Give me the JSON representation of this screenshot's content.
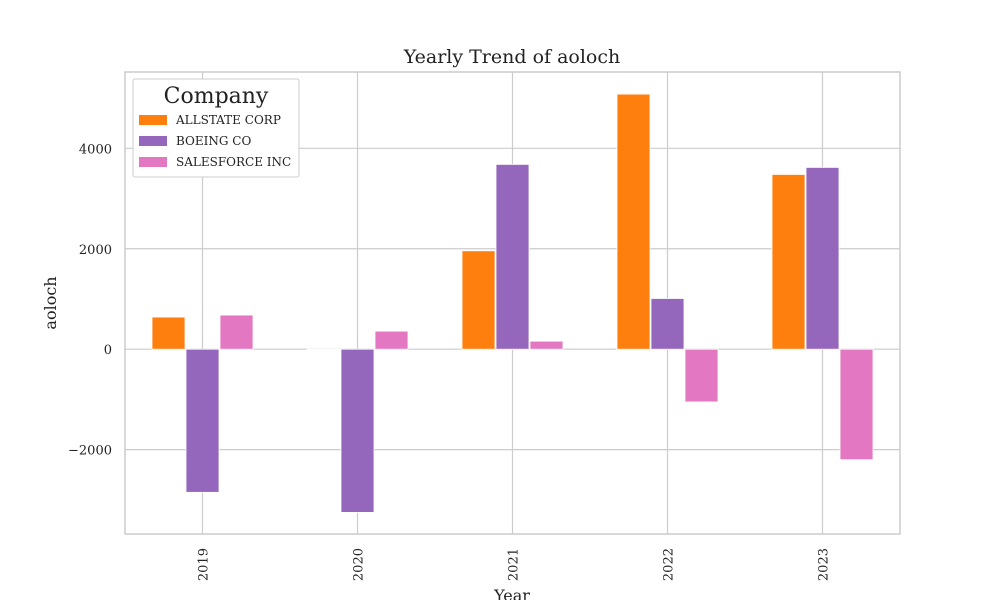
{
  "chart_data": {
    "type": "bar",
    "title": "Yearly Trend of aoloch",
    "xlabel": "Year",
    "ylabel": "aoloch",
    "categories": [
      "2019",
      "2020",
      "2021",
      "2022",
      "2023"
    ],
    "series": [
      {
        "name": "ALLSTATE CORP",
        "color": "#ff7f0e",
        "values": [
          640,
          0,
          1960,
          5080,
          3480
        ]
      },
      {
        "name": "BOEING CO",
        "color": "#9467bd",
        "values": [
          -2850,
          -3250,
          3680,
          1010,
          3620
        ]
      },
      {
        "name": "SALESFORCE INC",
        "color": "#e377c2",
        "values": [
          680,
          360,
          160,
          -1050,
          -2200
        ]
      }
    ],
    "ylim": [
      -3680,
      5520
    ],
    "yticks": [
      -2000,
      0,
      2000,
      4000
    ],
    "ytick_labels": [
      "−2000",
      "0",
      "2000",
      "4000"
    ],
    "grid": true,
    "legend": {
      "title": "Company",
      "placement": "top-left"
    }
  }
}
